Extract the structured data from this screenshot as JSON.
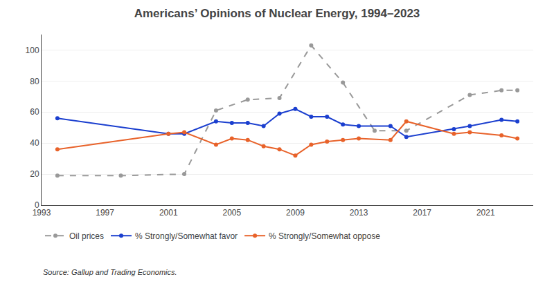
{
  "chart_data": {
    "type": "line",
    "title": "Americans’ Opinions of Nuclear Energy, 1994–2023",
    "series": [
      {
        "name": "Oil prices",
        "color": "#999999",
        "line_style": "dashed",
        "marker": "circle",
        "x": [
          1994,
          1998,
          2002,
          2004,
          2006,
          2008,
          2010,
          2012,
          2014,
          2016,
          2020,
          2022,
          2023
        ],
        "values": [
          19,
          19,
          20,
          61,
          68,
          69,
          103,
          79,
          48,
          48,
          71,
          74,
          74
        ]
      },
      {
        "name": "% Strongly/Somewhat favor",
        "color": "#1B3FCF",
        "line_style": "solid",
        "marker": "circle",
        "x": [
          1994,
          2001,
          2002,
          2004,
          2005,
          2006,
          2007,
          2008,
          2009,
          2010,
          2011,
          2012,
          2013,
          2015,
          2016,
          2019,
          2020,
          2022,
          2023
        ],
        "values": [
          56,
          46,
          46,
          54,
          53,
          53,
          51,
          59,
          62,
          57,
          57,
          52,
          51,
          51,
          44,
          49,
          51,
          55,
          54
        ]
      },
      {
        "name": "% Strongly/Somewhat oppose",
        "color": "#E8622A",
        "line_style": "solid",
        "marker": "circle",
        "x": [
          1994,
          2001,
          2002,
          2004,
          2005,
          2006,
          2007,
          2008,
          2009,
          2010,
          2011,
          2012,
          2013,
          2015,
          2016,
          2019,
          2020,
          2022,
          2023
        ],
        "values": [
          36,
          46,
          47,
          39,
          43,
          42,
          38,
          36,
          32,
          39,
          41,
          42,
          43,
          42,
          54,
          46,
          47,
          45,
          43
        ]
      }
    ],
    "xlim": [
      1993,
      2024
    ],
    "xticks": [
      1993,
      1997,
      2001,
      2005,
      2009,
      2013,
      2017,
      2021
    ],
    "ylim": [
      0,
      110
    ],
    "yticks": [
      0,
      20,
      40,
      60,
      80,
      100
    ],
    "grid": true,
    "legend": "below",
    "annotations": [
      "Source: Gallup and Trading Economics."
    ]
  }
}
